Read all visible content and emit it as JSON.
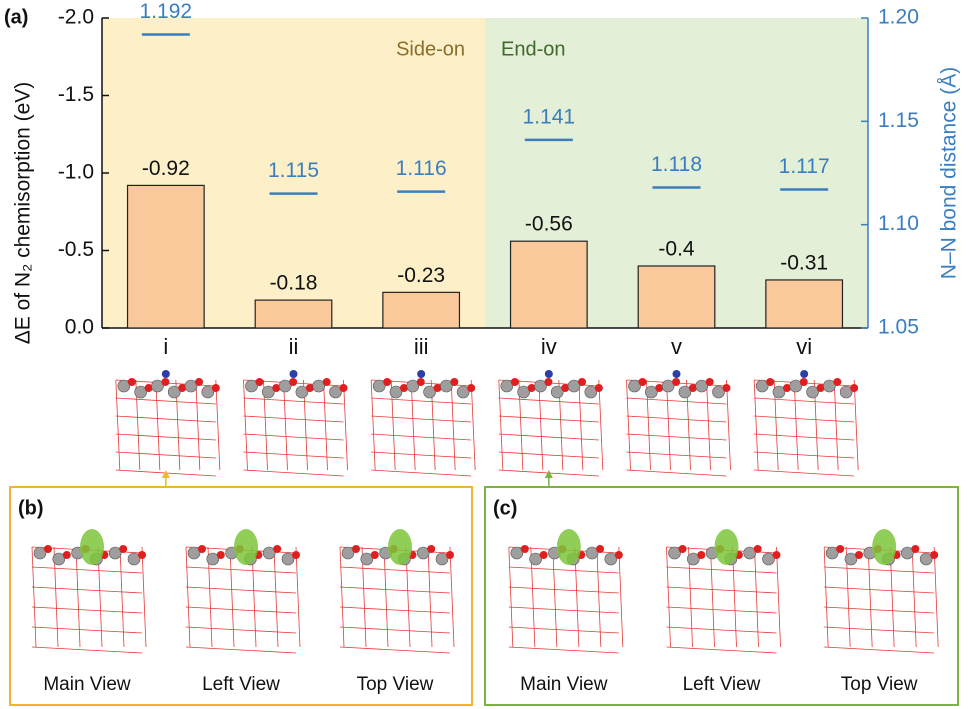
{
  "chart_data": {
    "type": "bar",
    "panel_label": "(a)",
    "y_label": "ΔE of N₂ chemisorption (eV)",
    "y2_label": "N–N bond distance (Å)",
    "regions": [
      {
        "label": "Side-on",
        "color": "#fdf0c8"
      },
      {
        "label": "End-on",
        "color": "#e3efd6"
      }
    ],
    "categories": [
      "i",
      "ii",
      "iii",
      "iv",
      "v",
      "vi"
    ],
    "series": [
      {
        "color": "#f9c89b",
        "values": [
          -0.92,
          -0.18,
          -0.23,
          -0.56,
          -0.4,
          -0.31
        ]
      },
      {
        "color": "#3a7ebf",
        "axis": "y2",
        "values": [
          1.192,
          1.115,
          1.116,
          1.141,
          1.118,
          1.117
        ]
      }
    ],
    "ylim": [
      0,
      -2.0
    ],
    "yticks": [
      {
        "value": 0,
        "label": "0.0"
      },
      -0.5,
      {
        "value": -1.0,
        "label": "-1.0"
      },
      -1.5,
      {
        "value": -2.0,
        "label": "-2.0"
      }
    ],
    "y2lim": [
      1.05,
      1.2
    ],
    "y2ticks": [
      1.05,
      {
        "value": 1.1,
        "label": "1.10"
      },
      1.15,
      {
        "value": 1.2,
        "label": "1.20"
      }
    ]
  },
  "panels": [
    {
      "label": "(b)",
      "color": "#f2b52e",
      "views": [
        "Main View",
        "Left View",
        "Top View"
      ]
    },
    {
      "label": "(c)",
      "color": "#7cb342",
      "views": [
        "Main View",
        "Left View",
        "Top View"
      ]
    }
  ]
}
